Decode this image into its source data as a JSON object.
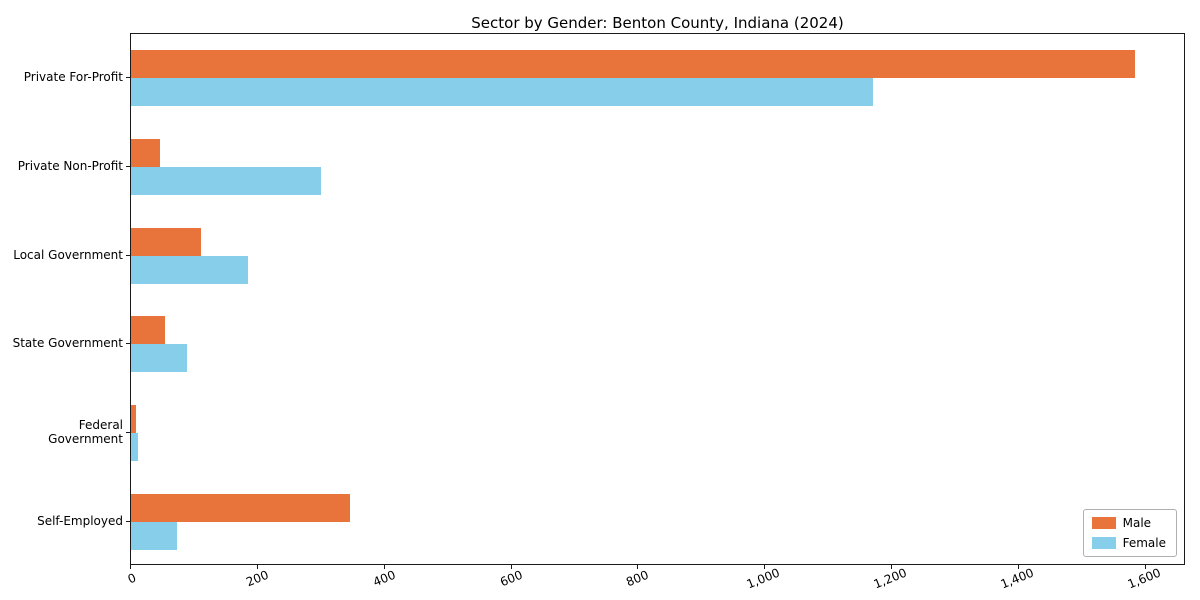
{
  "chart_data": {
    "type": "bar",
    "orientation": "horizontal",
    "title": "Sector by Gender: Benton County, Indiana (2024)",
    "categories": [
      "Private For-Profit",
      "Private Non-Profit",
      "Local Government",
      "State Government",
      "Federal Government",
      "Self-Employed"
    ],
    "series": [
      {
        "name": "Male",
        "color": "#e8743b",
        "values": [
          1583,
          45,
          110,
          54,
          8,
          345
        ]
      },
      {
        "name": "Female",
        "color": "#87ceeb",
        "values": [
          1170,
          299,
          184,
          88,
          11,
          72
        ]
      }
    ],
    "xlim": [
      0,
      1660
    ],
    "xticks": [
      0,
      200,
      400,
      600,
      800,
      1000,
      1200,
      1400,
      1600
    ],
    "xtick_labels": [
      "0",
      "200",
      "400",
      "600",
      "800",
      "1,000",
      "1,200",
      "1,400",
      "1,600"
    ],
    "xlabel": "",
    "ylabel": "",
    "grid": false,
    "legend_position": "lower right"
  }
}
